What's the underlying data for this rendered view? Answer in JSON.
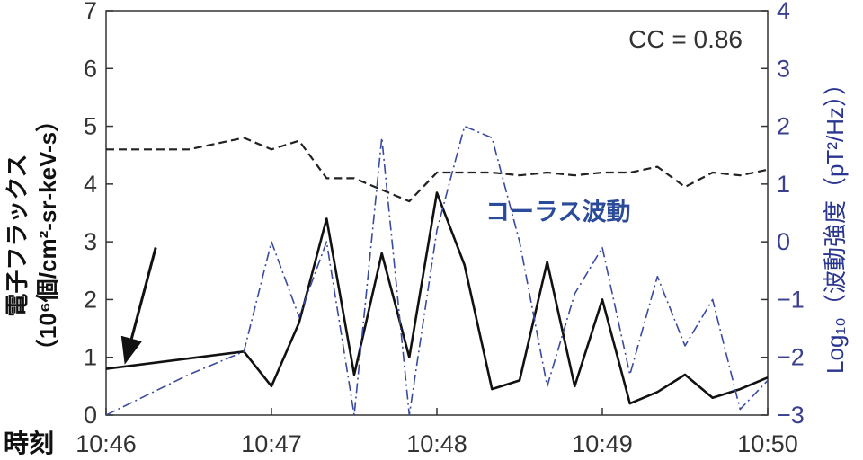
{
  "chart_data": {
    "type": "line",
    "xlabel": "時刻",
    "ylabel_left": "電子フラックス（10⁶個/cm²-sr-keV-s）",
    "ylabel_left_line1": "電子フラックス",
    "ylabel_left_line2": "（10⁶個/cm²-sr-keV-s）",
    "ylabel_right": "Log₁₀（波動強度（pT²/Hz））",
    "xlim": [
      "10:46",
      "10:50"
    ],
    "ylim_left": [
      0,
      7
    ],
    "ylim_right": [
      -3,
      4
    ],
    "x_ticks": [
      "10:46",
      "10:47",
      "10:48",
      "10:49",
      "10:50"
    ],
    "y_ticks_left": [
      "0",
      "1",
      "2",
      "3",
      "4",
      "5",
      "6",
      "7"
    ],
    "y_ticks_right": [
      "−3",
      "−2",
      "−1",
      "0",
      "1",
      "2",
      "3",
      "4"
    ],
    "annotations": {
      "correlation": "CC = 0.86",
      "wave_label": "コーラス波動"
    },
    "series": [
      {
        "key": "flux",
        "axis": "left",
        "color": "#111111",
        "style": "solid",
        "x": [
          "10:46:00",
          "10:46:50",
          "10:47:00",
          "10:47:10",
          "10:47:20",
          "10:47:30",
          "10:47:40",
          "10:47:50",
          "10:48:00",
          "10:48:10",
          "10:48:20",
          "10:48:30",
          "10:48:40",
          "10:48:50",
          "10:49:00",
          "10:49:10",
          "10:49:20",
          "10:49:30",
          "10:49:40",
          "10:49:50",
          "10:50:00"
        ],
        "y": [
          0.8,
          1.1,
          0.5,
          1.6,
          3.4,
          0.7,
          2.8,
          1.0,
          3.85,
          2.6,
          0.45,
          0.6,
          2.65,
          0.5,
          2.0,
          0.2,
          0.4,
          0.7,
          0.3,
          0.45,
          0.65
        ]
      },
      {
        "key": "wave",
        "axis": "right",
        "color": "#3a4aa0",
        "style": "dashdot",
        "x": [
          "10:46:00",
          "10:46:30",
          "10:46:50",
          "10:47:00",
          "10:47:10",
          "10:47:20",
          "10:47:30",
          "10:47:40",
          "10:47:50",
          "10:48:00",
          "10:48:10",
          "10:48:20",
          "10:48:30",
          "10:48:40",
          "10:48:50",
          "10:49:00",
          "10:49:10",
          "10:49:20",
          "10:49:30",
          "10:49:40",
          "10:49:50",
          "10:50:00"
        ],
        "y": [
          -3.0,
          -2.3,
          -1.9,
          0.0,
          -1.3,
          0.0,
          -3.0,
          1.8,
          -3.0,
          0.2,
          2.0,
          1.8,
          0.0,
          -2.5,
          -0.9,
          -0.1,
          -2.3,
          -0.6,
          -1.8,
          -1.0,
          -2.9,
          -2.4
        ]
      },
      {
        "key": "flux_baseline",
        "axis": "left",
        "color": "#222222",
        "style": "dashed",
        "x": [
          "10:46:00",
          "10:46:30",
          "10:46:50",
          "10:47:00",
          "10:47:10",
          "10:47:20",
          "10:47:30",
          "10:47:50",
          "10:48:00",
          "10:48:10",
          "10:48:20",
          "10:48:30",
          "10:48:40",
          "10:48:50",
          "10:49:00",
          "10:49:10",
          "10:49:20",
          "10:49:30",
          "10:49:40",
          "10:49:50",
          "10:50:00"
        ],
        "y": [
          4.6,
          4.6,
          4.8,
          4.6,
          4.75,
          4.1,
          4.1,
          3.7,
          4.2,
          4.2,
          4.2,
          4.15,
          4.2,
          4.15,
          4.2,
          4.2,
          4.3,
          3.95,
          4.2,
          4.15,
          4.25
        ]
      }
    ],
    "arrow": {
      "from": [
        "10:46:18",
        2.9
      ],
      "to": [
        "10:46:08",
        1.1
      ]
    }
  }
}
